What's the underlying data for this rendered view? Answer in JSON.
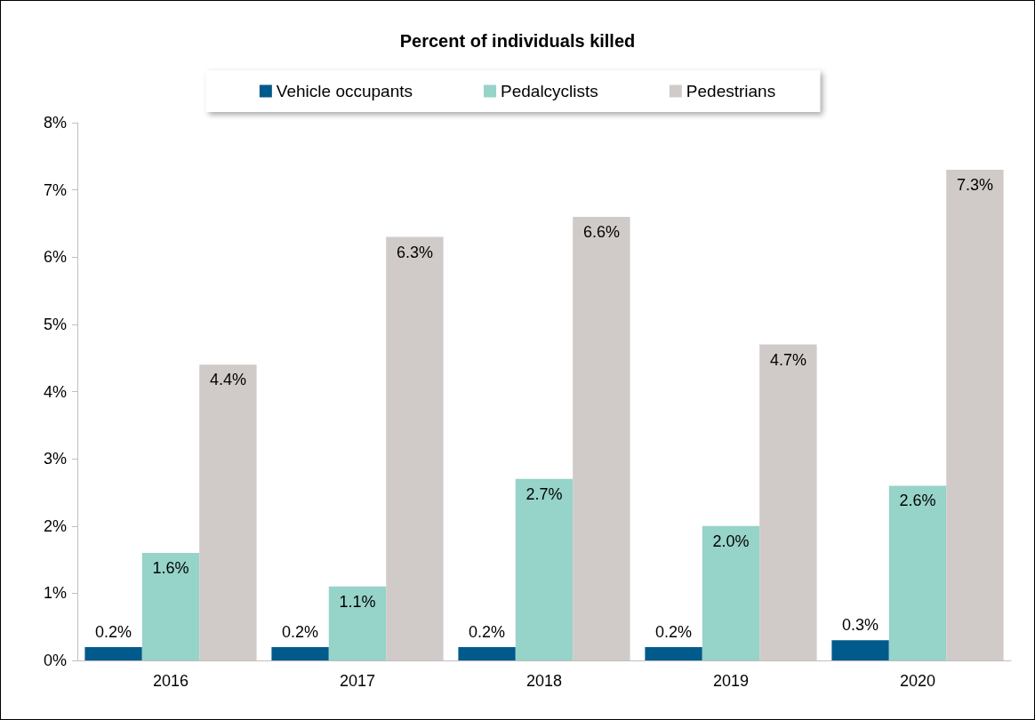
{
  "chart_data": {
    "type": "bar",
    "title": "Percent of individuals killed",
    "categories": [
      "2016",
      "2017",
      "2018",
      "2019",
      "2020"
    ],
    "series": [
      {
        "name": "Vehicle occupants",
        "color": "#005a8c",
        "values": [
          0.2,
          0.2,
          0.2,
          0.2,
          0.3
        ],
        "value_labels": [
          "0.2%",
          "0.2%",
          "0.2%",
          "0.2%",
          "0.3%"
        ]
      },
      {
        "name": "Pedalcyclists",
        "color": "#96d3c9",
        "values": [
          1.6,
          1.1,
          2.7,
          2.0,
          2.6
        ],
        "value_labels": [
          "1.6%",
          "1.1%",
          "2.7%",
          "2.0%",
          "2.6%"
        ]
      },
      {
        "name": "Pedestrians",
        "color": "#d0cbc8",
        "values": [
          4.4,
          6.3,
          6.6,
          4.7,
          7.3
        ],
        "value_labels": [
          "4.4%",
          "6.3%",
          "6.6%",
          "4.7%",
          "7.3%"
        ]
      }
    ],
    "ylim": [
      0,
      8
    ],
    "yticks": [
      {
        "value": 0,
        "label": "0%"
      },
      {
        "value": 1,
        "label": "1%"
      },
      {
        "value": 2,
        "label": "2%"
      },
      {
        "value": 3,
        "label": "3%"
      },
      {
        "value": 4,
        "label": "4%"
      },
      {
        "value": 5,
        "label": "5%"
      },
      {
        "value": 6,
        "label": "6%"
      },
      {
        "value": 7,
        "label": "7%"
      },
      {
        "value": 8,
        "label": "8%"
      }
    ],
    "grid": false,
    "legend": "top"
  }
}
